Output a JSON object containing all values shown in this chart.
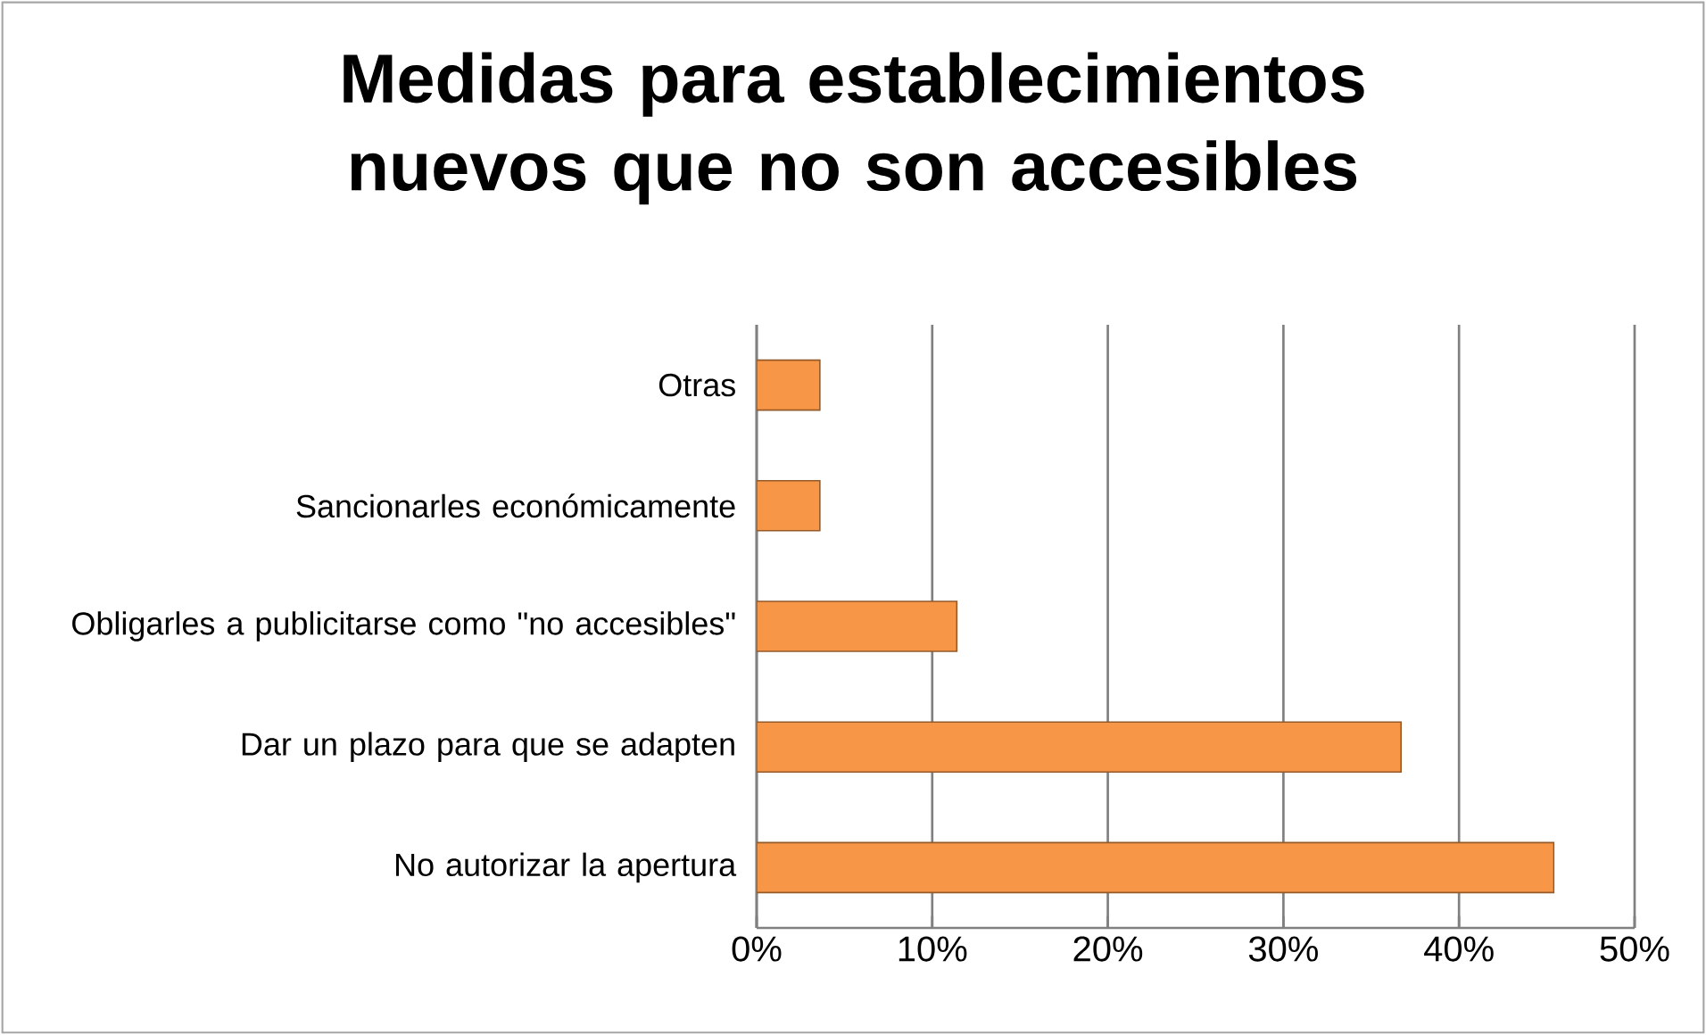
{
  "chart_data": {
    "type": "bar",
    "orientation": "horizontal",
    "title": "Medidas para establecimientos nuevos que no son accesibles",
    "categories": [
      "Otras",
      "Sancionarles económicamente",
      "Obligarles a publicitarse como \"no accesibles\"",
      "Dar un plazo para que se adapten",
      "No autorizar la apertura"
    ],
    "values": [
      3.6,
      3.6,
      11.4,
      36.7,
      45.4
    ],
    "color": "#f79646",
    "xlim": [
      0,
      50
    ],
    "xticks": [
      {
        "value": 0,
        "label": "0%"
      },
      {
        "value": 10,
        "label": "10%"
      },
      {
        "value": 20,
        "label": "20%"
      },
      {
        "value": 30,
        "label": "30%"
      },
      {
        "value": 40,
        "label": "40%"
      },
      {
        "value": 50,
        "label": "50%"
      }
    ],
    "grid": "x"
  }
}
